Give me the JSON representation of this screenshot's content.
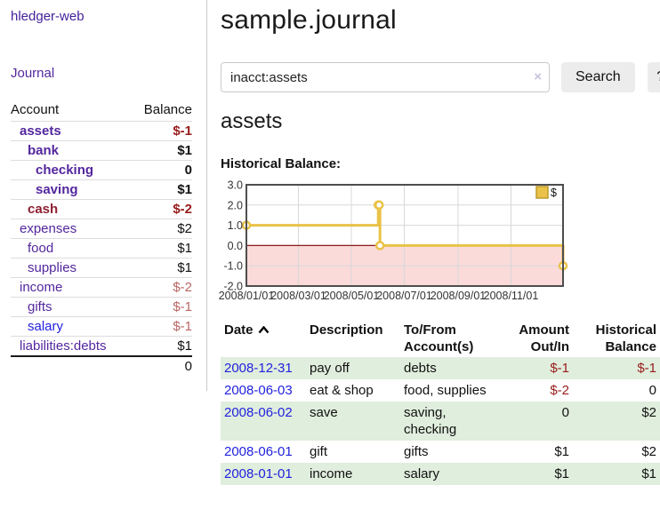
{
  "app": {
    "brand": "hledger-web",
    "nav_journal": "Journal"
  },
  "sidebar": {
    "table": {
      "headers": [
        "Account",
        "Balance"
      ],
      "rows": [
        {
          "account": "assets",
          "balance": "$-1",
          "level": 0,
          "strong": true,
          "account_color": "purple",
          "balance_color": "neg-strong"
        },
        {
          "account": "bank",
          "balance": "$1",
          "level": 1,
          "strong": true,
          "account_color": "purple",
          "balance_color": "pos"
        },
        {
          "account": "checking",
          "balance": "0",
          "level": 2,
          "strong": true,
          "account_color": "purple",
          "balance_color": "pos"
        },
        {
          "account": "saving",
          "balance": "$1",
          "level": 2,
          "strong": true,
          "account_color": "purple",
          "balance_color": "pos"
        },
        {
          "account": "cash",
          "balance": "$-2",
          "level": 1,
          "strong": true,
          "account_color": "maroon",
          "balance_color": "neg-strong"
        },
        {
          "account": "expenses",
          "balance": "$2",
          "level": 0,
          "strong": false,
          "account_color": "purple",
          "balance_color": "pos"
        },
        {
          "account": "food",
          "balance": "$1",
          "level": 1,
          "strong": false,
          "account_color": "purple",
          "balance_color": "pos"
        },
        {
          "account": "supplies",
          "balance": "$1",
          "level": 1,
          "strong": false,
          "account_color": "purple",
          "balance_color": "pos"
        },
        {
          "account": "income",
          "balance": "$-2",
          "level": 0,
          "strong": false,
          "account_color": "purple",
          "balance_color": "neg-soft"
        },
        {
          "account": "gifts",
          "balance": "$-1",
          "level": 1,
          "strong": false,
          "account_color": "purple",
          "balance_color": "neg-soft"
        },
        {
          "account": "salary",
          "balance": "$-1",
          "level": 1,
          "strong": false,
          "account_color": "blue",
          "balance_color": "neg-soft"
        },
        {
          "account": "liabilities:debts",
          "balance": "$1",
          "level": 0,
          "strong": false,
          "account_color": "purple",
          "balance_color": "pos"
        }
      ],
      "total": "0"
    }
  },
  "header": {
    "title": "sample.journal"
  },
  "search": {
    "value": "inacct:assets",
    "clear_icon": "×",
    "search_label": "Search",
    "help_label": "?"
  },
  "account_page": {
    "title": "assets",
    "chart_label": "Historical Balance:"
  },
  "chart_data": {
    "type": "line",
    "title": "Historical Balance:",
    "step": true,
    "series": [
      {
        "name": "$",
        "color": "#e9c247",
        "points": [
          [
            "2008-01-01",
            1
          ],
          [
            "2008-06-01",
            2
          ],
          [
            "2008-06-02",
            2
          ],
          [
            "2008-06-03",
            0
          ],
          [
            "2008-12-31",
            -1
          ]
        ]
      }
    ],
    "xlim": [
      "2008-01-01",
      "2008-12-31"
    ],
    "ylim": [
      -2,
      3
    ],
    "yticks": [
      3,
      2,
      1,
      0,
      -1,
      -2
    ],
    "ytick_labels": [
      "3.0",
      "2.0",
      "1.0",
      "0.0",
      "-1.0",
      "-2.0"
    ],
    "xticks": [
      "2008-01-01",
      "2008-03-01",
      "2008-05-01",
      "2008-07-01",
      "2008-09-01",
      "2008-11-01"
    ],
    "xtick_labels": [
      "2008/01/01",
      "2008/03/01",
      "2008/05/01",
      "2008/07/01",
      "2008/09/01",
      "2008/11/01"
    ],
    "legend": {
      "label": "$",
      "position": "top-right"
    },
    "grid": true,
    "colors": {
      "negative_region": "#fbdada",
      "zero_line": "#8b1a1a",
      "gridline": "#d8d8d8",
      "border": "#4d4d4d",
      "legend_square_border": "#bd9a2c"
    }
  },
  "register": {
    "headers": [
      "Date",
      "Description",
      "To/From Account(s)",
      "Amount Out/In",
      "Historical Balance"
    ],
    "sort": "ascending",
    "rows": [
      {
        "date": "2008-12-31",
        "description": "pay off",
        "accounts": "debts",
        "amount": "$-1",
        "amount_negative": true,
        "balance": "$-1",
        "balance_negative": true
      },
      {
        "date": "2008-06-03",
        "description": "eat & shop",
        "accounts": "food, supplies",
        "amount": "$-2",
        "amount_negative": true,
        "balance": "0",
        "balance_negative": false
      },
      {
        "date": "2008-06-02",
        "description": "save",
        "accounts": "saving, checking",
        "amount": "0",
        "amount_negative": false,
        "balance": "$2",
        "balance_negative": false
      },
      {
        "date": "2008-06-01",
        "description": "gift",
        "accounts": "gifts",
        "amount": "$1",
        "amount_negative": false,
        "balance": "$2",
        "balance_negative": false
      },
      {
        "date": "2008-01-01",
        "description": "income",
        "accounts": "salary",
        "amount": "$1",
        "amount_negative": false,
        "balance": "$1",
        "balance_negative": false
      }
    ]
  }
}
